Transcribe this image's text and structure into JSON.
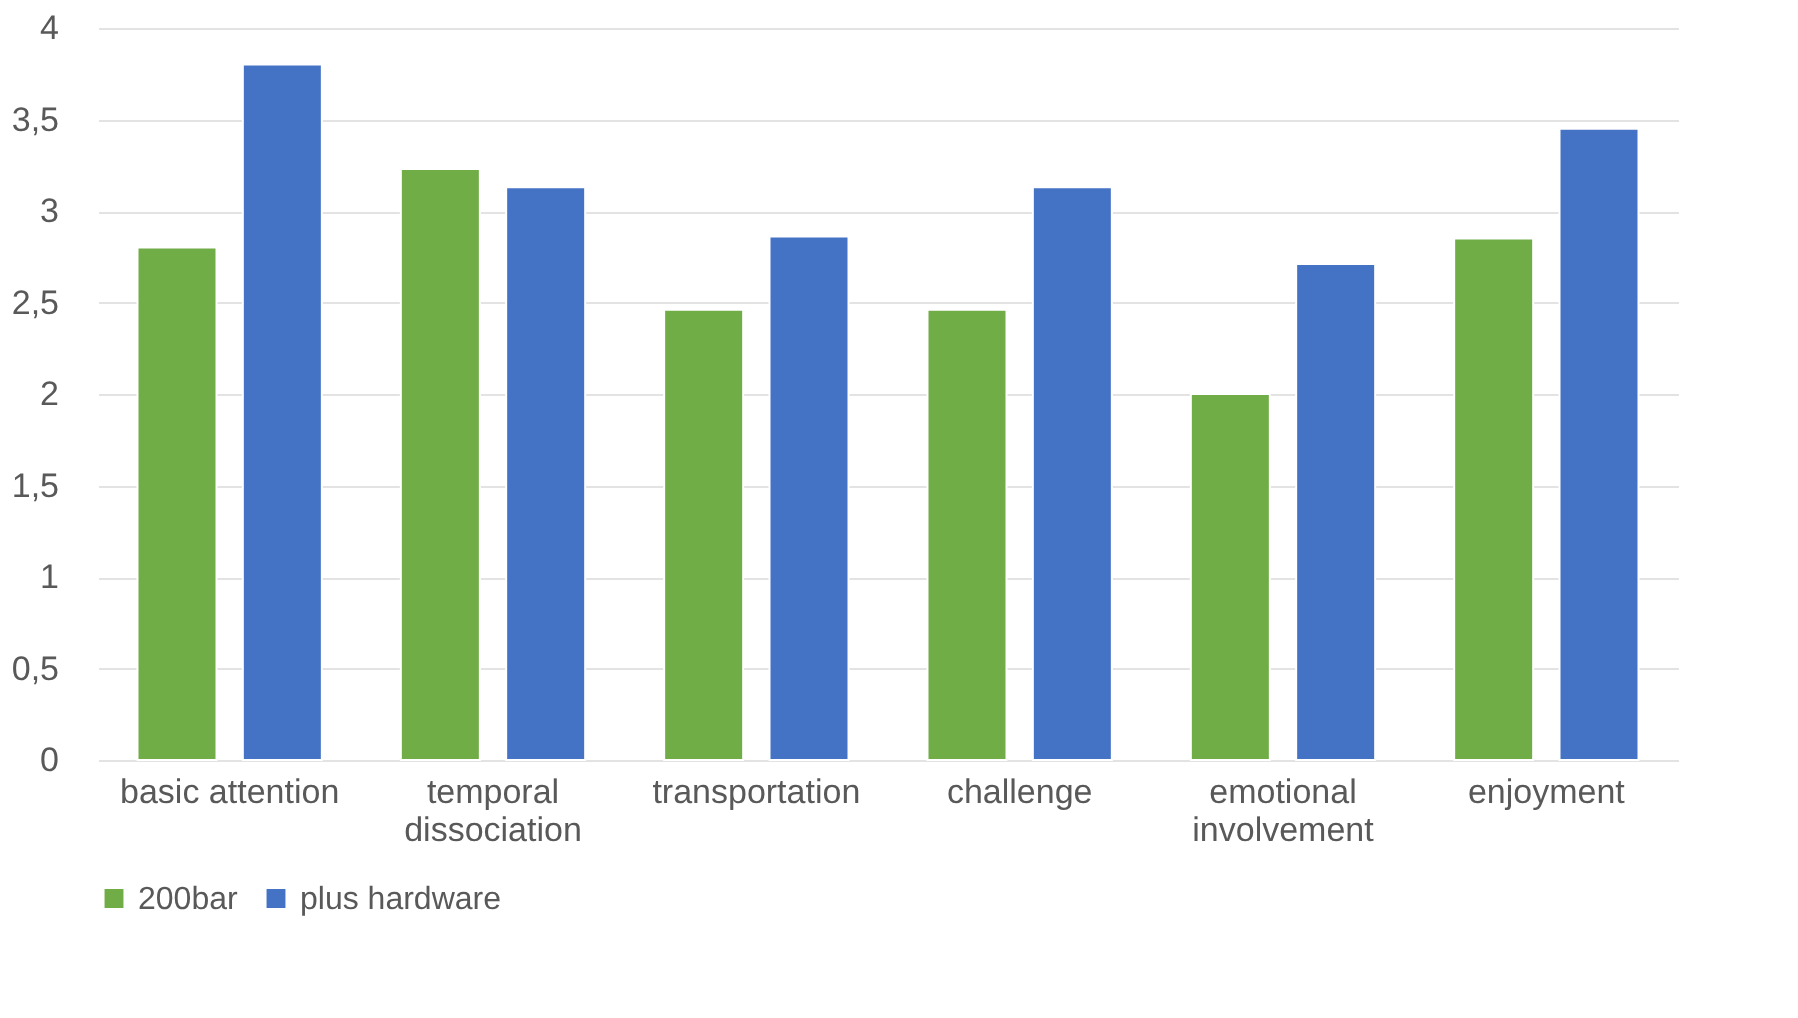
{
  "chart_data": {
    "type": "bar",
    "categories": [
      "basic attention",
      "temporal dissociation",
      "transportation",
      "challenge",
      "emotional involvement",
      "enjoyment"
    ],
    "series": [
      {
        "name": "200bar",
        "color": "#70ad47",
        "values": [
          2.8,
          3.23,
          2.46,
          2.46,
          2.0,
          2.85
        ]
      },
      {
        "name": "plus hardware",
        "color": "#4472c4",
        "values": [
          3.8,
          3.13,
          2.86,
          3.13,
          2.71,
          3.45
        ]
      }
    ],
    "ylim": [
      0,
      4
    ],
    "yticks": [
      0,
      {
        "value": 0.5,
        "label": "0,5"
      },
      1,
      {
        "value": 1.5,
        "label": "1,5"
      },
      2,
      {
        "value": 2.5,
        "label": "2,5"
      },
      3,
      {
        "value": 3.5,
        "label": "3,5"
      },
      4
    ],
    "grid": "y",
    "legend": "bottom"
  }
}
